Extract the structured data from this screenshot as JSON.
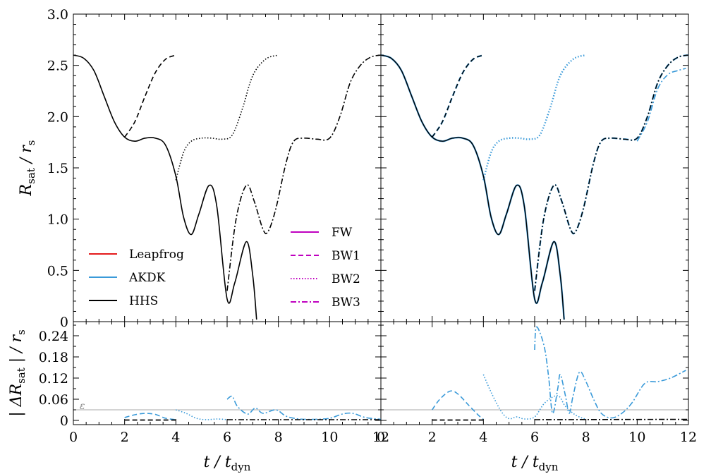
{
  "chart_data": {
    "type": "line",
    "x_label": "t / t_dyn",
    "x_label_parts": {
      "main": "t / t",
      "sub": "dyn"
    },
    "x_range": [
      0,
      12
    ],
    "x_ticks": [
      0,
      2,
      4,
      6,
      8,
      10,
      12
    ],
    "top_y_label": "R_sat / r_s",
    "top_y_label_parts": {
      "main": "R",
      "sub1": "sat",
      "mid": " / r",
      "sub2": "s"
    },
    "top_y_range": [
      0,
      3.0
    ],
    "top_y_ticks": [
      "3.0",
      "2.5",
      "2.0",
      "1.5",
      "1.0",
      "0.5",
      "0"
    ],
    "bottom_y_label": "| ΔR_sat | / r_s",
    "bottom_y_label_parts": {
      "main": "| ΔR",
      "sub1": "sat",
      "mid": " | / r",
      "sub2": "s"
    },
    "bottom_y_range": [
      -0.012,
      0.28
    ],
    "bottom_y_ticks": [
      "0.24",
      "0.18",
      "0.12",
      "0.06",
      "0"
    ],
    "epsilon_label": "ε",
    "epsilon_value": 0.03,
    "legend_integrators": [
      {
        "name": "Leapfrog",
        "color": "#e41a1c"
      },
      {
        "name": "AKDK",
        "color": "#3a9ad9"
      },
      {
        "name": "HHS",
        "color": "#000000"
      }
    ],
    "legend_runs": [
      {
        "name": "FW",
        "style": "solid",
        "color": "#bf00bf"
      },
      {
        "name": "BW1",
        "style": "dashed",
        "color": "#bf00bf"
      },
      {
        "name": "BW2",
        "style": "dotted",
        "color": "#bf00bf"
      },
      {
        "name": "BW3",
        "style": "dashdot",
        "color": "#bf00bf"
      }
    ],
    "series": {
      "FW": {
        "t_start": 0,
        "t_end": 7.15,
        "points": [
          [
            0,
            2.6
          ],
          [
            0.4,
            2.57
          ],
          [
            0.8,
            2.45
          ],
          [
            1.2,
            2.2
          ],
          [
            1.6,
            1.95
          ],
          [
            2.0,
            1.8
          ],
          [
            2.4,
            1.76
          ],
          [
            2.8,
            1.79
          ],
          [
            3.2,
            1.79
          ],
          [
            3.6,
            1.72
          ],
          [
            4.0,
            1.42
          ],
          [
            4.3,
            1.02
          ],
          [
            4.6,
            0.85
          ],
          [
            4.9,
            1.05
          ],
          [
            5.3,
            1.33
          ],
          [
            5.6,
            1.12
          ],
          [
            6.0,
            0.22
          ],
          [
            6.3,
            0.38
          ],
          [
            6.75,
            0.78
          ],
          [
            7.0,
            0.45
          ],
          [
            7.15,
            0.02
          ]
        ]
      },
      "BW1": {
        "t_start": 2.0,
        "t_end": 4.0,
        "points": [
          [
            2.0,
            1.8
          ],
          [
            2.4,
            1.95
          ],
          [
            2.8,
            2.2
          ],
          [
            3.2,
            2.43
          ],
          [
            3.6,
            2.56
          ],
          [
            4.0,
            2.6
          ]
        ]
      },
      "BW2": {
        "t_start": 4.0,
        "t_end": 8.0,
        "points": [
          [
            4.0,
            1.38
          ],
          [
            4.3,
            1.65
          ],
          [
            4.6,
            1.76
          ],
          [
            5.0,
            1.79
          ],
          [
            5.4,
            1.79
          ],
          [
            5.8,
            1.78
          ],
          [
            6.2,
            1.82
          ],
          [
            6.6,
            2.08
          ],
          [
            7.0,
            2.4
          ],
          [
            7.5,
            2.56
          ],
          [
            8.0,
            2.6
          ]
        ]
      },
      "BW3": {
        "t_start": 6.0,
        "t_end": 12.0,
        "points": [
          [
            6.0,
            0.3
          ],
          [
            6.35,
            1.0
          ],
          [
            6.75,
            1.33
          ],
          [
            7.05,
            1.18
          ],
          [
            7.4,
            0.9
          ],
          [
            7.6,
            0.88
          ],
          [
            7.9,
            1.1
          ],
          [
            8.3,
            1.55
          ],
          [
            8.6,
            1.76
          ],
          [
            9.0,
            1.79
          ],
          [
            9.5,
            1.78
          ],
          [
            10.0,
            1.79
          ],
          [
            10.4,
            2.0
          ],
          [
            10.8,
            2.33
          ],
          [
            11.2,
            2.5
          ],
          [
            11.6,
            2.58
          ],
          [
            12.0,
            2.6
          ]
        ]
      },
      "BW3_AKDK_right": {
        "points": [
          [
            10.0,
            1.76
          ],
          [
            10.4,
            1.95
          ],
          [
            10.8,
            2.27
          ],
          [
            11.2,
            2.41
          ],
          [
            11.6,
            2.45
          ],
          [
            11.9,
            2.47
          ]
        ]
      }
    },
    "residuals_left": {
      "BW1": [
        [
          2.0,
          0.008
        ],
        [
          2.4,
          0.016
        ],
        [
          2.8,
          0.02
        ],
        [
          3.2,
          0.017
        ],
        [
          3.6,
          0.006
        ],
        [
          4.0,
          0.002
        ]
      ],
      "BW2": [
        [
          4.0,
          0.03
        ],
        [
          4.4,
          0.02
        ],
        [
          4.8,
          0.006
        ],
        [
          5.2,
          0.002
        ],
        [
          5.6,
          0.004
        ],
        [
          6.0,
          0.002
        ]
      ],
      "BW3": [
        [
          6.0,
          0.06
        ],
        [
          6.2,
          0.068
        ],
        [
          6.4,
          0.04
        ],
        [
          6.8,
          0.018
        ],
        [
          7.1,
          0.035
        ],
        [
          7.4,
          0.02
        ],
        [
          7.9,
          0.03
        ],
        [
          8.3,
          0.012
        ],
        [
          8.8,
          0.004
        ],
        [
          9.4,
          0.003
        ],
        [
          10.0,
          0.006
        ],
        [
          10.5,
          0.018
        ],
        [
          10.9,
          0.02
        ],
        [
          11.4,
          0.008
        ],
        [
          12.0,
          0.003
        ]
      ],
      "BW3_black": [
        [
          6.0,
          0.002
        ],
        [
          12.0,
          0.002
        ]
      ],
      "BW1_black": [
        [
          2.0,
          0.001
        ],
        [
          4.0,
          0.001
        ]
      ]
    },
    "residuals_right": {
      "BW1": [
        [
          2.0,
          0.03
        ],
        [
          2.3,
          0.06
        ],
        [
          2.7,
          0.083
        ],
        [
          3.0,
          0.075
        ],
        [
          3.4,
          0.045
        ],
        [
          3.8,
          0.015
        ],
        [
          4.0,
          0.003
        ]
      ],
      "BW2": [
        [
          4.0,
          0.13
        ],
        [
          4.3,
          0.08
        ],
        [
          4.7,
          0.025
        ],
        [
          5.0,
          0.005
        ],
        [
          5.3,
          0.01
        ],
        [
          5.6,
          0.004
        ],
        [
          6.0,
          0.01
        ],
        [
          6.4,
          0.05
        ],
        [
          6.9,
          0.07
        ],
        [
          7.2,
          0.04
        ],
        [
          7.6,
          0.015
        ],
        [
          8.0,
          0.003
        ]
      ],
      "BW3": [
        [
          6.0,
          0.2
        ],
        [
          6.05,
          0.262
        ],
        [
          6.2,
          0.25
        ],
        [
          6.4,
          0.2
        ],
        [
          6.55,
          0.12
        ],
        [
          6.7,
          0.02
        ],
        [
          6.9,
          0.09
        ],
        [
          7.0,
          0.13
        ],
        [
          7.2,
          0.07
        ],
        [
          7.35,
          0.02
        ],
        [
          7.5,
          0.07
        ],
        [
          7.75,
          0.137
        ],
        [
          8.0,
          0.11
        ],
        [
          8.3,
          0.06
        ],
        [
          8.6,
          0.02
        ],
        [
          9.0,
          0.007
        ],
        [
          9.4,
          0.02
        ],
        [
          9.8,
          0.05
        ],
        [
          10.3,
          0.105
        ],
        [
          10.8,
          0.11
        ],
        [
          11.3,
          0.12
        ],
        [
          11.9,
          0.142
        ]
      ],
      "BW3_black": [
        [
          6.0,
          0.002
        ],
        [
          12.0,
          0.003
        ]
      ],
      "BW1_black": [
        [
          2.0,
          0.001
        ],
        [
          4.0,
          0.001
        ]
      ]
    }
  }
}
